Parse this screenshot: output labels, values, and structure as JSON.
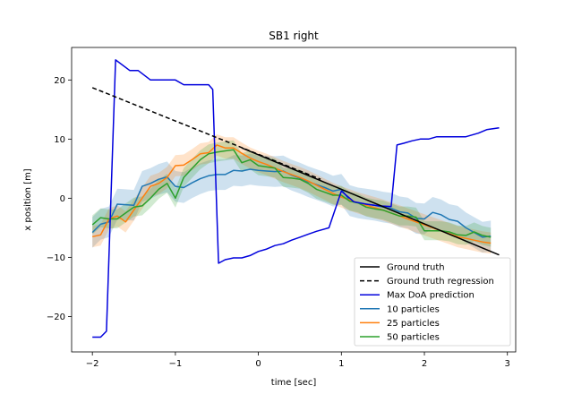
{
  "chart_data": {
    "type": "line",
    "title": "SB1 right",
    "xlabel": "time [sec]",
    "ylabel": "x position [m]",
    "xlim": [
      -2.25,
      3.1
    ],
    "ylim": [
      -26,
      25.5
    ],
    "xticks": [
      -2,
      -1,
      0,
      1,
      2,
      3
    ],
    "xtick_labels": [
      "−2",
      "−1",
      "0",
      "1",
      "2",
      "3"
    ],
    "yticks": [
      -20,
      -10,
      0,
      10,
      20
    ],
    "ytick_labels": [
      "−20",
      "−10",
      "0",
      "10",
      "20"
    ],
    "legend_position": "lower-right",
    "series": [
      {
        "name": "Ground truth",
        "color": "#000000",
        "style": "solid",
        "x": [
          -0.2,
          2.9
        ],
        "y": [
          8.5,
          -9.6
        ]
      },
      {
        "name": "Ground truth regression",
        "color": "#000000",
        "style": "dashed",
        "x": [
          -2.0,
          0.75
        ],
        "y": [
          18.7,
          3.2
        ]
      },
      {
        "name": "Max DoA prediction",
        "color": "#0000dd",
        "style": "solid",
        "x": [
          -2.0,
          -1.9,
          -1.83,
          -1.72,
          -1.55,
          -1.45,
          -1.3,
          -1.2,
          -1.0,
          -0.9,
          -0.8,
          -0.6,
          -0.55,
          -0.48,
          -0.4,
          -0.3,
          -0.2,
          -0.1,
          0.0,
          0.1,
          0.2,
          0.3,
          0.4,
          0.5,
          0.6,
          0.7,
          0.85,
          1.0,
          1.15,
          1.3,
          1.45,
          1.6,
          1.67,
          1.75,
          1.85,
          1.95,
          2.05,
          2.15,
          2.3,
          2.5,
          2.65,
          2.75,
          2.9
        ],
        "y": [
          -23.5,
          -23.5,
          -22.5,
          23.4,
          21.6,
          21.6,
          20.0,
          20.0,
          20.0,
          19.2,
          19.2,
          19.2,
          18.4,
          -11.0,
          -10.4,
          -10.1,
          -10.1,
          -9.7,
          -9.0,
          -8.6,
          -8.0,
          -7.7,
          -7.1,
          -6.6,
          -6.1,
          -5.6,
          -5.0,
          1.2,
          -0.6,
          -1.0,
          -1.3,
          -1.4,
          9.0,
          9.3,
          9.7,
          10.0,
          10.0,
          10.4,
          10.4,
          10.4,
          11.0,
          11.6,
          11.9
        ]
      },
      {
        "name": "10 particles",
        "color": "#1f77b4",
        "style": "solid",
        "band_width": 2.6,
        "x": [
          -2.0,
          -1.9,
          -1.8,
          -1.7,
          -1.6,
          -1.5,
          -1.4,
          -1.3,
          -1.2,
          -1.1,
          -1.0,
          -0.9,
          -0.8,
          -0.7,
          -0.6,
          -0.5,
          -0.4,
          -0.3,
          -0.2,
          -0.1,
          0.0,
          0.1,
          0.2,
          0.3,
          0.4,
          0.5,
          0.6,
          0.7,
          0.8,
          0.9,
          1.0,
          1.1,
          1.2,
          1.3,
          1.4,
          1.5,
          1.6,
          1.7,
          1.8,
          1.9,
          2.0,
          2.1,
          2.2,
          2.3,
          2.4,
          2.5,
          2.6,
          2.7,
          2.8
        ],
        "y": [
          -5.8,
          -4.4,
          -4.0,
          -1.0,
          -1.1,
          -1.2,
          2.0,
          2.5,
          3.2,
          3.6,
          2.0,
          1.8,
          2.6,
          3.3,
          3.8,
          4.0,
          4.0,
          4.7,
          4.6,
          4.9,
          4.7,
          4.6,
          4.5,
          4.6,
          3.9,
          3.4,
          2.8,
          2.3,
          1.8,
          1.2,
          1.5,
          -0.4,
          -0.8,
          -1.0,
          -1.2,
          -1.5,
          -1.7,
          -2.3,
          -2.5,
          -3.4,
          -3.5,
          -2.4,
          -2.8,
          -3.6,
          -3.9,
          -5.0,
          -5.8,
          -6.6,
          -6.4
        ]
      },
      {
        "name": "25 particles",
        "color": "#ff7f0e",
        "style": "solid",
        "band_width": 1.8,
        "x": [
          -2.0,
          -1.9,
          -1.8,
          -1.7,
          -1.6,
          -1.5,
          -1.4,
          -1.3,
          -1.2,
          -1.1,
          -1.0,
          -0.9,
          -0.8,
          -0.7,
          -0.6,
          -0.5,
          -0.4,
          -0.3,
          -0.2,
          -0.1,
          0.0,
          0.1,
          0.2,
          0.3,
          0.4,
          0.5,
          0.6,
          0.7,
          0.8,
          0.9,
          1.0,
          1.1,
          1.2,
          1.3,
          1.4,
          1.5,
          1.6,
          1.7,
          1.8,
          1.9,
          2.0,
          2.1,
          2.2,
          2.3,
          2.4,
          2.5,
          2.6,
          2.7,
          2.8
        ],
        "y": [
          -6.5,
          -6.2,
          -3.5,
          -3.0,
          -4.0,
          -2.0,
          0.0,
          2.0,
          2.5,
          3.5,
          5.5,
          5.6,
          6.5,
          7.5,
          7.7,
          9.0,
          8.5,
          8.5,
          7.6,
          6.8,
          6.2,
          5.7,
          5.1,
          4.5,
          4.0,
          3.5,
          2.9,
          2.2,
          1.5,
          0.8,
          0.2,
          -0.3,
          -0.8,
          -1.2,
          -1.6,
          -2.0,
          -2.5,
          -3.0,
          -3.5,
          -4.0,
          -4.5,
          -5.0,
          -5.5,
          -6.0,
          -6.5,
          -6.8,
          -7.1,
          -7.4,
          -7.6
        ]
      },
      {
        "name": "50 particles",
        "color": "#2ca02c",
        "style": "solid",
        "band_width": 1.6,
        "x": [
          -2.0,
          -1.9,
          -1.8,
          -1.7,
          -1.6,
          -1.5,
          -1.4,
          -1.3,
          -1.2,
          -1.1,
          -1.0,
          -0.9,
          -0.8,
          -0.7,
          -0.6,
          -0.5,
          -0.4,
          -0.3,
          -0.2,
          -0.1,
          0.0,
          0.1,
          0.2,
          0.3,
          0.4,
          0.5,
          0.6,
          0.7,
          0.8,
          0.9,
          1.0,
          1.1,
          1.2,
          1.3,
          1.4,
          1.5,
          1.6,
          1.7,
          1.8,
          1.9,
          2.0,
          2.1,
          2.2,
          2.3,
          2.4,
          2.5,
          2.6,
          2.7,
          2.8
        ],
        "y": [
          -4.5,
          -3.3,
          -3.5,
          -3.5,
          -2.5,
          -1.5,
          -1.3,
          0.0,
          1.5,
          2.5,
          0.0,
          3.5,
          5.0,
          6.5,
          7.5,
          7.8,
          8.0,
          8.2,
          6.0,
          6.5,
          5.5,
          5.3,
          5.1,
          3.5,
          3.4,
          3.2,
          2.5,
          1.5,
          1.0,
          0.5,
          0.5,
          -0.5,
          -0.8,
          -1.5,
          -1.8,
          -2.0,
          -2.5,
          -3.0,
          -3.0,
          -3.2,
          -5.5,
          -5.5,
          -5.5,
          -5.7,
          -6.2,
          -6.3,
          -5.7,
          -6.3,
          -6.6
        ]
      }
    ]
  }
}
